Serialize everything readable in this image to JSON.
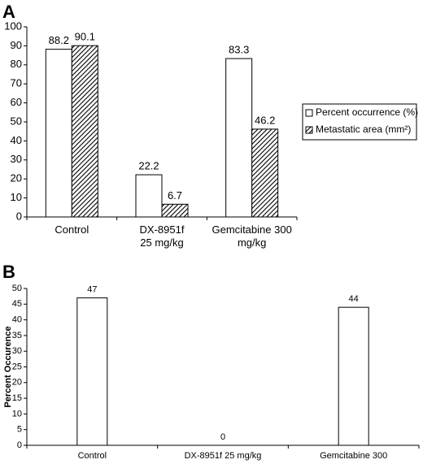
{
  "chart_data": [
    {
      "type": "bar",
      "panel": "A",
      "categories": [
        "Control",
        "DX-8951f\n25 mg/kg",
        "Gemcitabine 300\nmg/kg"
      ],
      "series": [
        {
          "name": "Percent occurrence (%)",
          "color": "#ffffff",
          "pattern": "none",
          "values": [
            88.2,
            22.2,
            83.3
          ]
        },
        {
          "name": "Metastatic area (mm²)",
          "color": "#000000",
          "pattern": "diagonal",
          "values": [
            90.1,
            6.7,
            46.2
          ]
        }
      ],
      "ylim": [
        0,
        100
      ],
      "yticks": [
        0,
        10,
        20,
        30,
        40,
        50,
        60,
        70,
        80,
        90,
        100
      ],
      "grid": false,
      "legend": "right"
    },
    {
      "type": "bar",
      "panel": "B",
      "ylabel": "Percent Occurence",
      "categories": [
        "Control",
        "DX-8951f 25 mg/kg",
        "Gemcitabine 300 mg/kg"
      ],
      "series": [
        {
          "name": null,
          "color": "#ffffff",
          "pattern": "none",
          "values": [
            47,
            0,
            44
          ]
        }
      ],
      "ylim": [
        0,
        50
      ],
      "yticks": [
        0,
        5,
        10,
        15,
        20,
        25,
        30,
        35,
        40,
        45,
        50
      ],
      "grid": false
    }
  ]
}
